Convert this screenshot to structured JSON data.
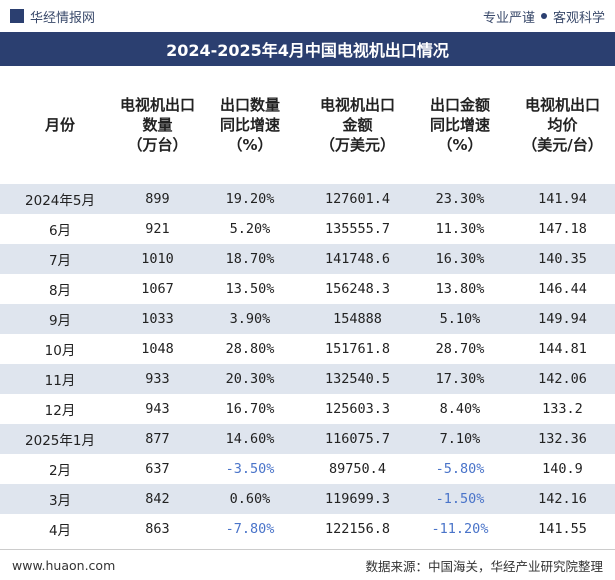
{
  "header": {
    "logo": "华经情报网",
    "slogan": [
      "专业严谨",
      "客观科学"
    ]
  },
  "title": "2024-2025年4月中国电视机出口情况",
  "table": {
    "columns": [
      [
        "月份"
      ],
      [
        "电视机出口",
        "数量",
        "（万台）"
      ],
      [
        "出口数量",
        "同比增速",
        "（%）"
      ],
      [
        "电视机出口",
        "金额",
        "（万美元）"
      ],
      [
        "出口金额",
        "同比增速",
        "（%）"
      ],
      [
        "电视机出口",
        "均价",
        "（美元/台）"
      ]
    ],
    "rows": [
      [
        "2024年5月",
        "899",
        "19.20%",
        "127601.4",
        "23.30%",
        "141.94"
      ],
      [
        "6月",
        "921",
        "5.20%",
        "135555.7",
        "11.30%",
        "147.18"
      ],
      [
        "7月",
        "1010",
        "18.70%",
        "141748.6",
        "16.30%",
        "140.35"
      ],
      [
        "8月",
        "1067",
        "13.50%",
        "156248.3",
        "13.80%",
        "146.44"
      ],
      [
        "9月",
        "1033",
        "3.90%",
        "154888",
        "5.10%",
        "149.94"
      ],
      [
        "10月",
        "1048",
        "28.80%",
        "151761.8",
        "28.70%",
        "144.81"
      ],
      [
        "11月",
        "933",
        "20.30%",
        "132540.5",
        "17.30%",
        "142.06"
      ],
      [
        "12月",
        "943",
        "16.70%",
        "125603.3",
        "8.40%",
        "133.2"
      ],
      [
        "2025年1月",
        "877",
        "14.60%",
        "116075.7",
        "7.10%",
        "132.36"
      ],
      [
        "2月",
        "637",
        "-3.50%",
        "89750.4",
        "-5.80%",
        "140.9"
      ],
      [
        "3月",
        "842",
        "0.60%",
        "119699.3",
        "-1.50%",
        "142.16"
      ],
      [
        "4月",
        "863",
        "-7.80%",
        "122156.8",
        "-11.20%",
        "141.55"
      ]
    ]
  },
  "footer": {
    "site": "www.huaon.com",
    "source": "数据来源：中国海关，华经产业研究院整理"
  }
}
